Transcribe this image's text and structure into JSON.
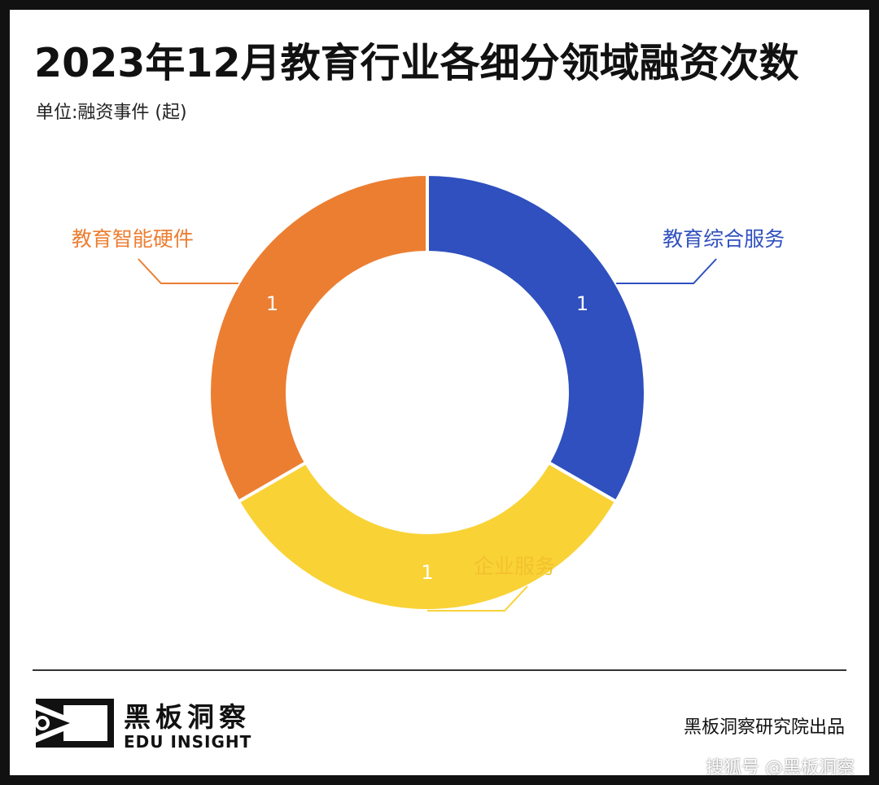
{
  "header": {
    "title": "2023年12月教育行业各细分领域融资次数",
    "unit": "单位:融资事件 (起)"
  },
  "chart_data": {
    "type": "pie",
    "title": "2023年12月教育行业各细分领域融资次数",
    "subtitle": "单位:融资事件 (起)",
    "slices": [
      {
        "label": "教育综合服务",
        "value": 1,
        "color": "#2F50BE"
      },
      {
        "label": "企业服务",
        "value": 1,
        "color": "#F9D236"
      },
      {
        "label": "教育智能硬件",
        "value": 1,
        "color": "#EC7E32"
      }
    ],
    "donut": true,
    "legend": "none"
  },
  "footer": {
    "brand_cn": "黑板洞察",
    "brand_en": "EDU INSIGHT",
    "credit": "黑板洞察研究院出品",
    "watermark": "搜狐号 @黑板洞察"
  }
}
